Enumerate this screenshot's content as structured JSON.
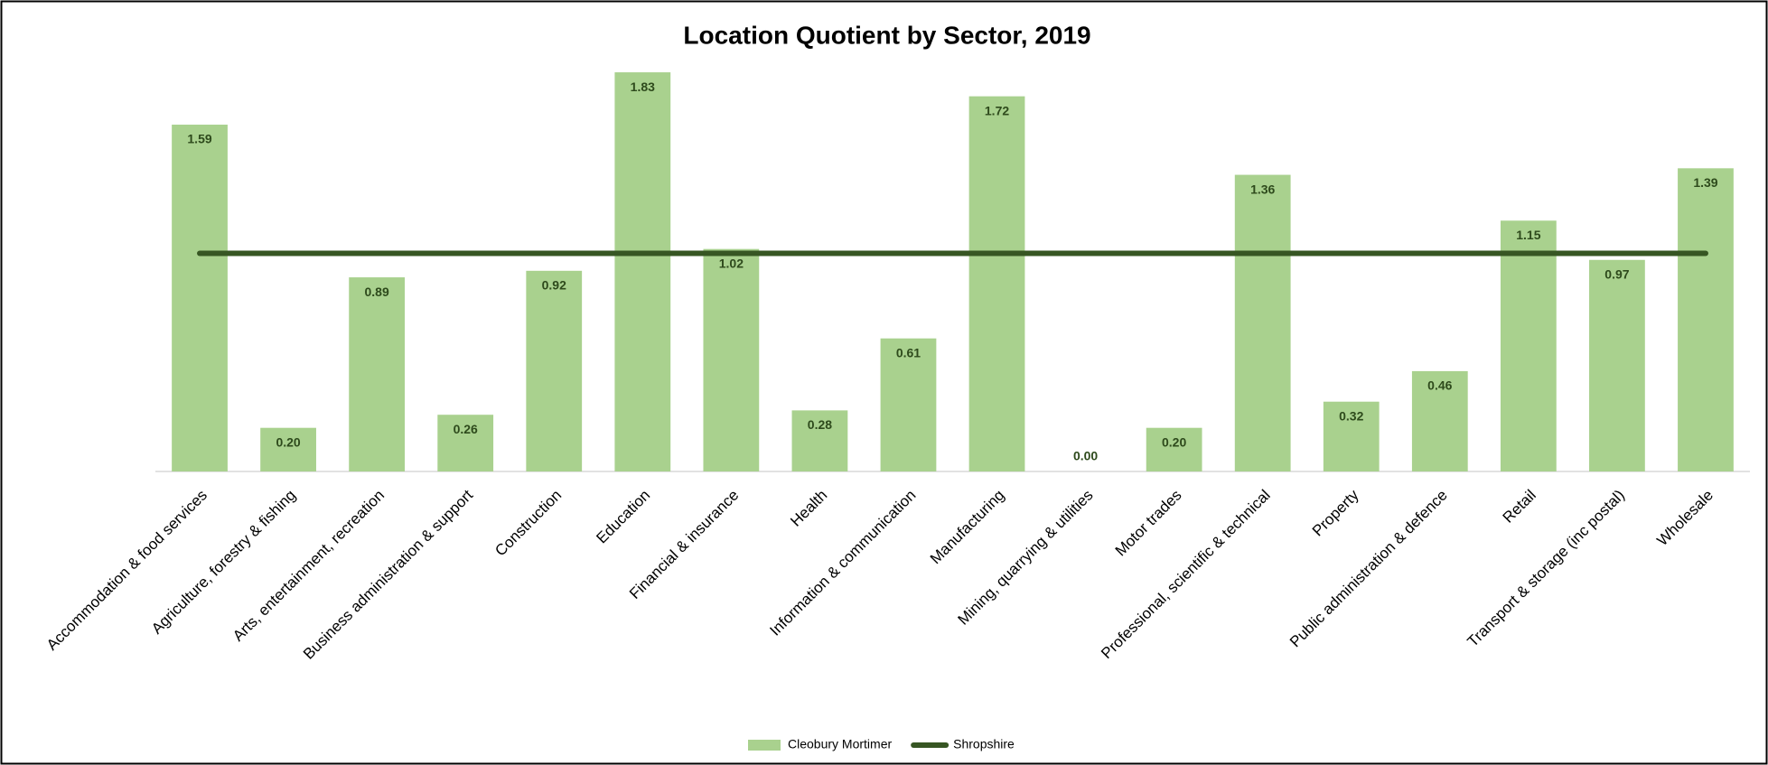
{
  "chart_data": {
    "type": "bar",
    "title": "Location Quotient by Sector, 2019",
    "categories": [
      "Accommodation & food services",
      "Agriculture, forestry & fishing",
      "Arts, entertainment, recreation",
      "Business administration & support",
      "Construction",
      "Education",
      "Financial & insurance",
      "Health",
      "Information & communication",
      "Manufacturing",
      "Mining, quarrying & utilities",
      "Motor trades",
      "Professional, scientific & technical",
      "Property",
      "Public administration & defence",
      "Retail",
      "Transport & storage (inc postal)",
      "Wholesale"
    ],
    "series": [
      {
        "name": "Cleobury Mortimer",
        "type": "bar",
        "color": "#a9d18e",
        "values": [
          1.59,
          0.2,
          0.89,
          0.26,
          0.92,
          1.83,
          1.02,
          0.28,
          0.61,
          1.72,
          0,
          0.2,
          1.36,
          0.32,
          0.46,
          1.15,
          0.97,
          1.39
        ],
        "value_labels": [
          "1.59",
          "0.20",
          "0.89",
          "0.26",
          "0.92",
          "1.83",
          "1.02",
          "0.28",
          "0.61",
          "1.72",
          "0.00",
          "0.20",
          "1.36",
          "0.32",
          "0.46",
          "1.15",
          "0.97",
          "1.39"
        ]
      },
      {
        "name": "Shropshire",
        "type": "line",
        "color": "#375623",
        "values": [
          1,
          1,
          1,
          1,
          1,
          1,
          1,
          1,
          1,
          1,
          1,
          1,
          1,
          1,
          1,
          1,
          1,
          1
        ]
      }
    ],
    "ylim": [
      0,
      2
    ]
  }
}
